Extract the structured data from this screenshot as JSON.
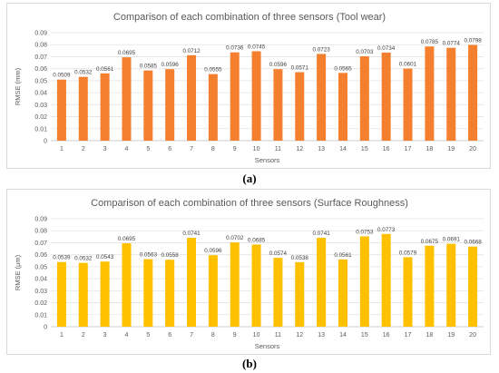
{
  "chart_data": [
    {
      "type": "bar",
      "title": "Comparison of each combination of three sensors (Tool wear)",
      "xlabel": "Sensors",
      "ylabel": "RMSE (mm)",
      "ylim": [
        0,
        0.09
      ],
      "ytick_step": 0.01,
      "grid": true,
      "color": "#f4802f",
      "categories": [
        "1",
        "2",
        "3",
        "4",
        "5",
        "6",
        "7",
        "8",
        "9",
        "10",
        "11",
        "12",
        "13",
        "14",
        "15",
        "16",
        "17",
        "18",
        "19",
        "20"
      ],
      "values": [
        0.0509,
        0.0532,
        0.0561,
        0.0695,
        0.0585,
        0.0596,
        0.0712,
        0.0555,
        0.0736,
        0.0745,
        0.0596,
        0.0571,
        0.0723,
        0.0565,
        0.0703,
        0.0734,
        0.0601,
        0.0785,
        0.0774,
        0.0798
      ],
      "caption": "(a)"
    },
    {
      "type": "bar",
      "title": "Comparison of each combination of three sensors (Surface Roughness)",
      "xlabel": "Sensors",
      "ylabel": "RMSE (μm)",
      "ylim": [
        0,
        0.09
      ],
      "ytick_step": 0.01,
      "grid": true,
      "color": "#ffc000",
      "categories": [
        "1",
        "2",
        "3",
        "4",
        "5",
        "6",
        "7",
        "8",
        "9",
        "10",
        "11",
        "12",
        "13",
        "14",
        "15",
        "16",
        "17",
        "18",
        "19",
        "20"
      ],
      "values": [
        0.0539,
        0.0532,
        0.0543,
        0.0695,
        0.0563,
        0.0558,
        0.0741,
        0.0596,
        0.0702,
        0.0685,
        0.0574,
        0.0538,
        0.0741,
        0.0561,
        0.0753,
        0.0773,
        0.0579,
        0.0675,
        0.0691,
        0.0668
      ],
      "caption": "(b)"
    }
  ]
}
